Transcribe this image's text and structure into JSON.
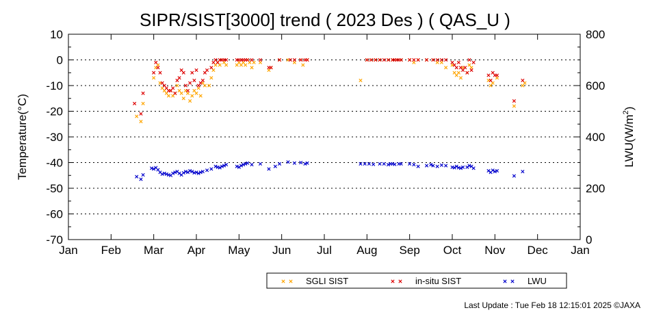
{
  "chart_data": {
    "type": "scatter",
    "title": "SIPR/SIST[3000] trend ( 2023 Des ) ( QAS_U )",
    "ylabel_left": "Temperature(°C)",
    "ylabel_right": "LWU(W/m",
    "ylabel_right_sup": "2",
    "ylabel_right_close": ")",
    "x_ticks": [
      "Jan",
      "Feb",
      "Mar",
      "Apr",
      "May",
      "Jun",
      "Jul",
      "Aug",
      "Sep",
      "Oct",
      "Nov",
      "Dec",
      "Jan"
    ],
    "x_range": [
      0,
      12
    ],
    "y_left_range": [
      -70,
      10
    ],
    "y_left_ticks": [
      10,
      0,
      -10,
      -20,
      -30,
      -40,
      -50,
      -60,
      -70
    ],
    "y_right_range": [
      0,
      800
    ],
    "y_right_ticks": [
      800,
      600,
      400,
      200,
      0
    ],
    "grid": "horizontal-dotted",
    "legend_position": "bottom-right",
    "colors": {
      "sgli": "#ffa500",
      "insitu": "#dd0000",
      "lwu": "#0000cc"
    },
    "series": [
      {
        "name": "SGLI SIST",
        "axis": "left",
        "points": [
          [
            1.6,
            -22
          ],
          [
            1.7,
            -24
          ],
          [
            1.75,
            -17
          ],
          [
            2.0,
            -7
          ],
          [
            2.05,
            -3
          ],
          [
            2.1,
            -2
          ],
          [
            2.15,
            -9
          ],
          [
            2.2,
            -11
          ],
          [
            2.25,
            -12
          ],
          [
            2.3,
            -13
          ],
          [
            2.35,
            -14
          ],
          [
            2.4,
            -12
          ],
          [
            2.45,
            -14
          ],
          [
            2.5,
            -13
          ],
          [
            2.55,
            -10
          ],
          [
            2.6,
            -12
          ],
          [
            2.65,
            -13
          ],
          [
            2.7,
            -15
          ],
          [
            2.75,
            -12
          ],
          [
            2.8,
            -13
          ],
          [
            2.85,
            -16
          ],
          [
            2.9,
            -14
          ],
          [
            2.95,
            -12
          ],
          [
            3.0,
            -13
          ],
          [
            3.05,
            -11
          ],
          [
            3.1,
            -14
          ],
          [
            3.15,
            -9
          ],
          [
            3.2,
            -10
          ],
          [
            3.3,
            -10
          ],
          [
            3.35,
            -7
          ],
          [
            3.4,
            -4
          ],
          [
            3.45,
            -2
          ],
          [
            3.5,
            -1
          ],
          [
            3.55,
            -2
          ],
          [
            3.6,
            0
          ],
          [
            3.65,
            -1
          ],
          [
            3.7,
            -2
          ],
          [
            3.95,
            -2
          ],
          [
            4.0,
            -1
          ],
          [
            4.05,
            -2
          ],
          [
            4.1,
            -1
          ],
          [
            4.15,
            -2
          ],
          [
            4.2,
            0
          ],
          [
            4.25,
            -1
          ],
          [
            4.3,
            -3
          ],
          [
            4.35,
            -1
          ],
          [
            4.5,
            -1
          ],
          [
            4.7,
            -4
          ],
          [
            4.75,
            -3
          ],
          [
            4.95,
            0
          ],
          [
            5.15,
            0
          ],
          [
            5.3,
            -1
          ],
          [
            5.45,
            0
          ],
          [
            5.5,
            -2
          ],
          [
            5.6,
            0
          ],
          [
            6.85,
            -8
          ],
          [
            7.0,
            0
          ],
          [
            7.1,
            0
          ],
          [
            7.2,
            0
          ],
          [
            7.3,
            0
          ],
          [
            7.5,
            0
          ],
          [
            7.6,
            0
          ],
          [
            7.7,
            0
          ],
          [
            7.8,
            0
          ],
          [
            8.0,
            0
          ],
          [
            8.1,
            -1
          ],
          [
            8.2,
            0
          ],
          [
            8.4,
            0
          ],
          [
            8.55,
            0
          ],
          [
            8.65,
            -1
          ],
          [
            8.75,
            -1
          ],
          [
            8.85,
            -3
          ],
          [
            9.0,
            -2
          ],
          [
            9.05,
            -5
          ],
          [
            9.1,
            -6
          ],
          [
            9.15,
            -5
          ],
          [
            9.2,
            -7
          ],
          [
            9.25,
            -3
          ],
          [
            9.35,
            -5
          ],
          [
            9.4,
            -2
          ],
          [
            9.45,
            -3
          ],
          [
            9.85,
            -8
          ],
          [
            9.9,
            -10
          ],
          [
            9.95,
            -9
          ],
          [
            10.05,
            -7
          ],
          [
            10.45,
            -18
          ],
          [
            10.65,
            -10
          ],
          [
            10.7,
            -9
          ]
        ]
      },
      {
        "name": "in-situ SIST",
        "axis": "left",
        "points": [
          [
            1.55,
            -17
          ],
          [
            1.7,
            -21
          ],
          [
            1.75,
            -13
          ],
          [
            2.0,
            -5
          ],
          [
            2.05,
            -1
          ],
          [
            2.1,
            -3
          ],
          [
            2.15,
            -5
          ],
          [
            2.2,
            -9
          ],
          [
            2.25,
            -10
          ],
          [
            2.3,
            -11
          ],
          [
            2.35,
            -12
          ],
          [
            2.4,
            -12
          ],
          [
            2.45,
            -11
          ],
          [
            2.5,
            -13
          ],
          [
            2.55,
            -8
          ],
          [
            2.6,
            -7
          ],
          [
            2.65,
            -4
          ],
          [
            2.7,
            -5
          ],
          [
            2.75,
            -10
          ],
          [
            2.8,
            -12
          ],
          [
            2.85,
            -9
          ],
          [
            2.9,
            -5
          ],
          [
            2.95,
            -8
          ],
          [
            3.0,
            -4
          ],
          [
            3.05,
            -10
          ],
          [
            3.1,
            -9
          ],
          [
            3.15,
            -8
          ],
          [
            3.2,
            -5
          ],
          [
            3.25,
            -4
          ],
          [
            3.35,
            -3
          ],
          [
            3.4,
            -1
          ],
          [
            3.45,
            0
          ],
          [
            3.5,
            -1
          ],
          [
            3.55,
            0
          ],
          [
            3.6,
            0
          ],
          [
            3.65,
            0
          ],
          [
            3.7,
            0
          ],
          [
            3.95,
            0
          ],
          [
            4.0,
            0
          ],
          [
            4.05,
            0
          ],
          [
            4.1,
            0
          ],
          [
            4.15,
            0
          ],
          [
            4.2,
            0
          ],
          [
            4.3,
            0
          ],
          [
            4.5,
            0
          ],
          [
            4.7,
            -3
          ],
          [
            4.75,
            -3
          ],
          [
            4.95,
            0
          ],
          [
            5.2,
            0
          ],
          [
            5.3,
            0
          ],
          [
            5.45,
            0
          ],
          [
            5.55,
            0
          ],
          [
            5.6,
            0
          ],
          [
            7.0,
            0
          ],
          [
            7.1,
            0
          ],
          [
            7.2,
            0
          ],
          [
            7.3,
            0
          ],
          [
            7.4,
            0
          ],
          [
            7.5,
            0
          ],
          [
            7.6,
            0
          ],
          [
            7.65,
            0
          ],
          [
            7.7,
            0
          ],
          [
            7.75,
            0
          ],
          [
            7.8,
            0
          ],
          [
            8.0,
            0
          ],
          [
            8.1,
            0
          ],
          [
            8.2,
            0
          ],
          [
            8.4,
            0
          ],
          [
            8.55,
            0
          ],
          [
            8.65,
            0
          ],
          [
            8.75,
            0
          ],
          [
            8.85,
            0
          ],
          [
            9.0,
            -1
          ],
          [
            9.05,
            -2
          ],
          [
            9.1,
            -3
          ],
          [
            9.15,
            -1
          ],
          [
            9.2,
            -3
          ],
          [
            9.25,
            -4
          ],
          [
            9.3,
            -3
          ],
          [
            9.35,
            -5
          ],
          [
            9.4,
            0
          ],
          [
            9.45,
            -4
          ],
          [
            9.5,
            -1
          ],
          [
            9.85,
            -6
          ],
          [
            9.9,
            -8
          ],
          [
            9.95,
            -5
          ],
          [
            10.0,
            -6
          ],
          [
            10.05,
            -6
          ],
          [
            10.45,
            -16
          ],
          [
            10.65,
            -8
          ]
        ]
      },
      {
        "name": "LWU",
        "axis": "right",
        "points": [
          [
            1.6,
            245
          ],
          [
            1.7,
            235
          ],
          [
            1.75,
            252
          ],
          [
            1.95,
            278
          ],
          [
            2.0,
            275
          ],
          [
            2.05,
            280
          ],
          [
            2.1,
            272
          ],
          [
            2.15,
            262
          ],
          [
            2.2,
            255
          ],
          [
            2.25,
            258
          ],
          [
            2.3,
            255
          ],
          [
            2.35,
            252
          ],
          [
            2.4,
            250
          ],
          [
            2.45,
            258
          ],
          [
            2.5,
            262
          ],
          [
            2.55,
            265
          ],
          [
            2.6,
            258
          ],
          [
            2.65,
            252
          ],
          [
            2.7,
            260
          ],
          [
            2.75,
            265
          ],
          [
            2.8,
            262
          ],
          [
            2.85,
            268
          ],
          [
            2.9,
            265
          ],
          [
            2.95,
            260
          ],
          [
            3.0,
            262
          ],
          [
            3.05,
            258
          ],
          [
            3.1,
            262
          ],
          [
            3.15,
            265
          ],
          [
            3.25,
            270
          ],
          [
            3.35,
            275
          ],
          [
            3.45,
            285
          ],
          [
            3.5,
            282
          ],
          [
            3.55,
            280
          ],
          [
            3.6,
            285
          ],
          [
            3.65,
            288
          ],
          [
            3.7,
            292
          ],
          [
            3.95,
            285
          ],
          [
            4.0,
            282
          ],
          [
            4.05,
            288
          ],
          [
            4.1,
            292
          ],
          [
            4.15,
            295
          ],
          [
            4.2,
            298
          ],
          [
            4.3,
            292
          ],
          [
            4.5,
            295
          ],
          [
            4.7,
            275
          ],
          [
            4.85,
            285
          ],
          [
            4.95,
            295
          ],
          [
            5.15,
            302
          ],
          [
            5.3,
            298
          ],
          [
            5.45,
            300
          ],
          [
            5.55,
            295
          ],
          [
            5.6,
            298
          ],
          [
            6.85,
            295
          ],
          [
            6.95,
            295
          ],
          [
            7.05,
            295
          ],
          [
            7.15,
            293
          ],
          [
            7.3,
            295
          ],
          [
            7.4,
            295
          ],
          [
            7.5,
            292
          ],
          [
            7.55,
            295
          ],
          [
            7.6,
            295
          ],
          [
            7.65,
            293
          ],
          [
            7.75,
            295
          ],
          [
            7.8,
            295
          ],
          [
            8.0,
            295
          ],
          [
            8.1,
            292
          ],
          [
            8.2,
            285
          ],
          [
            8.4,
            288
          ],
          [
            8.5,
            292
          ],
          [
            8.55,
            288
          ],
          [
            8.65,
            285
          ],
          [
            8.75,
            290
          ],
          [
            8.85,
            288
          ],
          [
            9.0,
            282
          ],
          [
            9.05,
            280
          ],
          [
            9.1,
            285
          ],
          [
            9.15,
            280
          ],
          [
            9.2,
            278
          ],
          [
            9.25,
            282
          ],
          [
            9.35,
            282
          ],
          [
            9.4,
            288
          ],
          [
            9.45,
            285
          ],
          [
            9.5,
            278
          ],
          [
            9.85,
            268
          ],
          [
            9.9,
            262
          ],
          [
            9.95,
            270
          ],
          [
            10.0,
            265
          ],
          [
            10.05,
            268
          ],
          [
            10.45,
            248
          ],
          [
            10.65,
            265
          ]
        ]
      }
    ]
  },
  "footer": "Last Update : Tue Feb 18 12:15:01 2025  ©JAXA"
}
